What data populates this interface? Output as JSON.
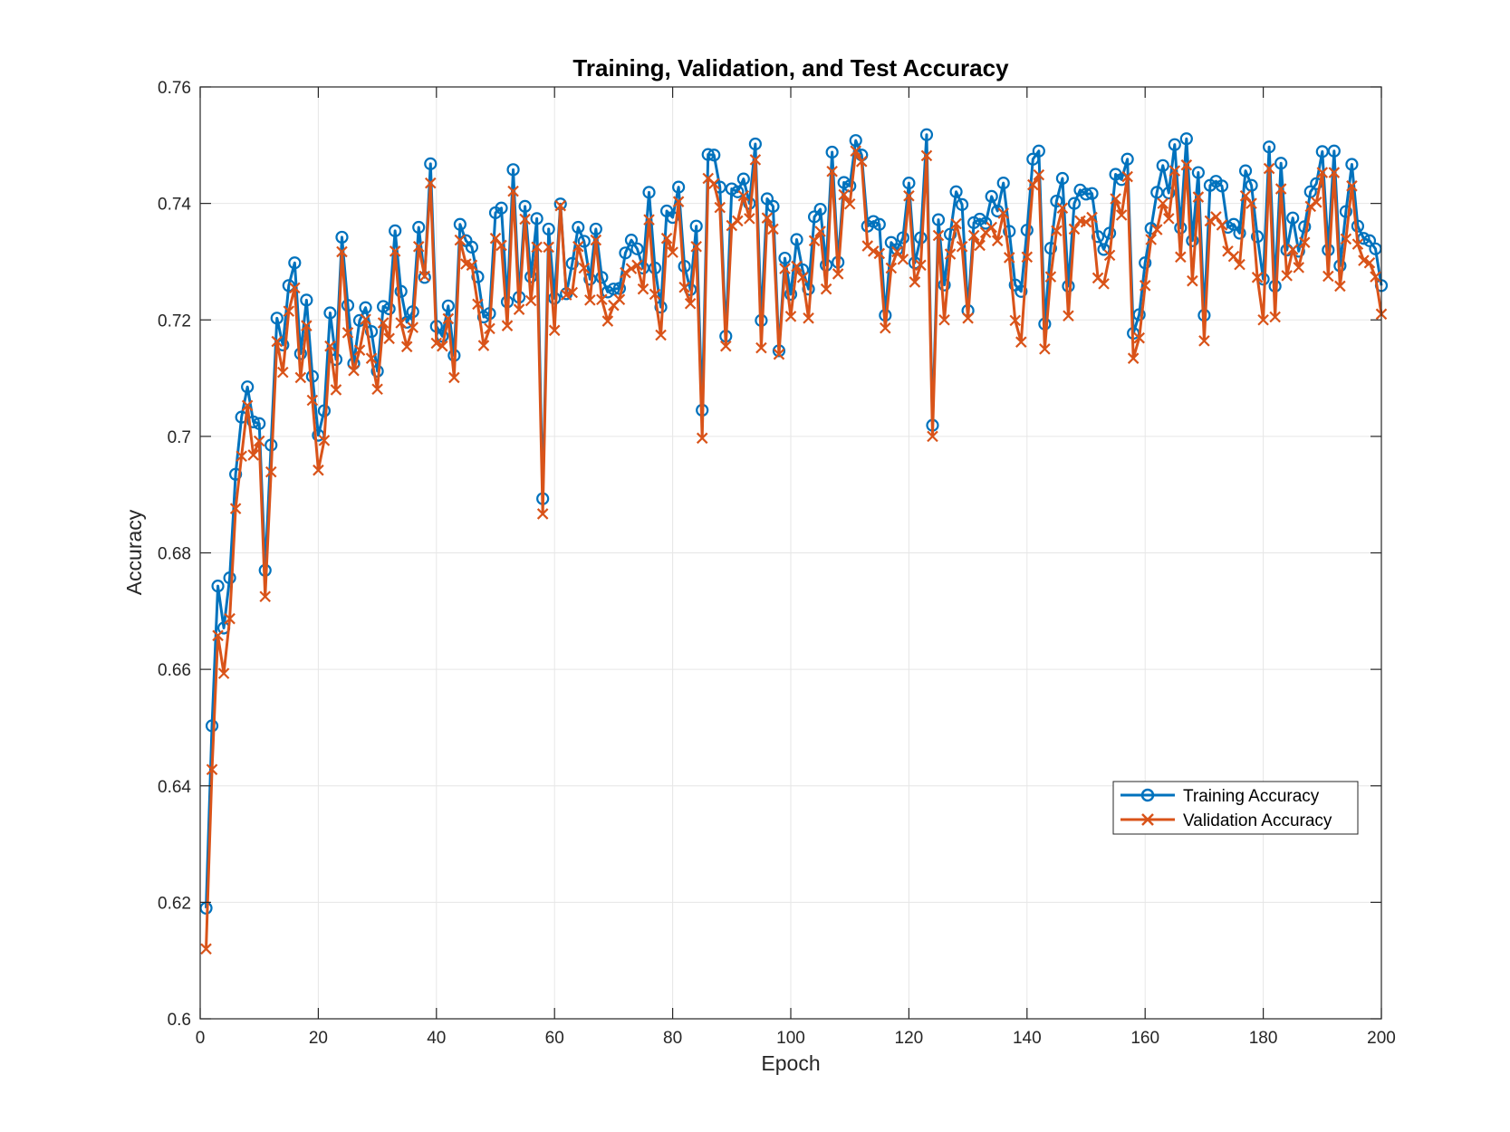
{
  "chart_data": {
    "type": "line",
    "title": "Training, Validation, and Test Accuracy",
    "xlabel": "Epoch",
    "ylabel": "Accuracy",
    "xlim": [
      0,
      200
    ],
    "ylim": [
      0.6,
      0.76
    ],
    "xticks": [
      0,
      20,
      40,
      60,
      80,
      100,
      120,
      140,
      160,
      180,
      200
    ],
    "xtick_labels": [
      "0",
      "20",
      "40",
      "60",
      "80",
      "100",
      "120",
      "140",
      "160",
      "180",
      "200"
    ],
    "yticks": [
      0.6,
      0.62,
      0.64,
      0.66,
      0.68,
      0.7,
      0.72,
      0.74,
      0.76
    ],
    "ytick_labels": [
      "0.6",
      "0.62",
      "0.64",
      "0.66",
      "0.68",
      "0.7",
      "0.72",
      "0.74",
      "0.76"
    ],
    "grid": true,
    "legend_position": "lower-right",
    "x": [
      1,
      2,
      3,
      4,
      5,
      6,
      7,
      8,
      9,
      10,
      11,
      12,
      13,
      14,
      15,
      16,
      17,
      18,
      19,
      20,
      21,
      22,
      23,
      24,
      25,
      26,
      27,
      28,
      29,
      30,
      31,
      32,
      33,
      34,
      35,
      36,
      37,
      38,
      39,
      40,
      41,
      42,
      43,
      44,
      45,
      46,
      47,
      48,
      49,
      50,
      51,
      52,
      53,
      54,
      55,
      56,
      57,
      58,
      59,
      60,
      61,
      62,
      63,
      64,
      65,
      66,
      67,
      68,
      69,
      70,
      71,
      72,
      73,
      74,
      75,
      76,
      77,
      78,
      79,
      80,
      81,
      82,
      83,
      84,
      85,
      86,
      87,
      88,
      89,
      90,
      91,
      92,
      93,
      94,
      95,
      96,
      97,
      98,
      99,
      100,
      101,
      102,
      103,
      104,
      105,
      106,
      107,
      108,
      109,
      110,
      111,
      112,
      113,
      114,
      115,
      116,
      117,
      118,
      119,
      120,
      121,
      122,
      123,
      124,
      125,
      126,
      127,
      128,
      129,
      130,
      131,
      132,
      133,
      134,
      135,
      136,
      137,
      138,
      139,
      140,
      141,
      142,
      143,
      144,
      145,
      146,
      147,
      148,
      149,
      150,
      151,
      152,
      153,
      154,
      155,
      156,
      157,
      158,
      159,
      160,
      161,
      162,
      163,
      164,
      165,
      166,
      167,
      168,
      169,
      170,
      171,
      172,
      173,
      174,
      175,
      176,
      177,
      178,
      179,
      180,
      181,
      182,
      183,
      184,
      185,
      186,
      187,
      188,
      189,
      190,
      191,
      192,
      193,
      194,
      195,
      196,
      197,
      198,
      199,
      200
    ],
    "series": [
      {
        "name": "Training Accuracy",
        "color": "#0072BD",
        "marker": "circle",
        "values": [
          0.619,
          0.6503,
          0.6743,
          0.6671,
          0.6757,
          0.6935,
          0.7033,
          0.7085,
          0.7025,
          0.7022,
          0.677,
          0.6985,
          0.7203,
          0.7157,
          0.7259,
          0.7298,
          0.7142,
          0.7234,
          0.7103,
          0.7002,
          0.7044,
          0.7212,
          0.7132,
          0.7342,
          0.7225,
          0.7125,
          0.7199,
          0.7221,
          0.718,
          0.7112,
          0.7223,
          0.7219,
          0.7353,
          0.7249,
          0.7196,
          0.7214,
          0.7359,
          0.7273,
          0.7468,
          0.7189,
          0.7172,
          0.7224,
          0.7139,
          0.7364,
          0.7336,
          0.7325,
          0.7274,
          0.7205,
          0.7211,
          0.7384,
          0.7392,
          0.7231,
          0.7458,
          0.7239,
          0.7395,
          0.7274,
          0.7374,
          0.6893,
          0.7356,
          0.7237,
          0.7399,
          0.7245,
          0.7297,
          0.7359,
          0.7335,
          0.727,
          0.7356,
          0.7273,
          0.7248,
          0.7253,
          0.7254,
          0.7315,
          0.7337,
          0.7322,
          0.7289,
          0.7419,
          0.7289,
          0.7222,
          0.7387,
          0.7376,
          0.7428,
          0.7292,
          0.7252,
          0.7361,
          0.7045,
          0.7484,
          0.7483,
          0.7428,
          0.7172,
          0.7425,
          0.742,
          0.7442,
          0.74,
          0.7502,
          0.7199,
          0.7408,
          0.7395,
          0.7147,
          0.7306,
          0.7244,
          0.7338,
          0.7286,
          0.7253,
          0.7377,
          0.739,
          0.7294,
          0.7488,
          0.7299,
          0.7436,
          0.743,
          0.7508,
          0.7483,
          0.7361,
          0.7369,
          0.7364,
          0.7208,
          0.7333,
          0.7321,
          0.7341,
          0.7435,
          0.7298,
          0.7341,
          0.7518,
          0.7019,
          0.7372,
          0.726,
          0.7347,
          0.742,
          0.7398,
          0.7216,
          0.7367,
          0.7373,
          0.7366,
          0.7412,
          0.7387,
          0.7435,
          0.7352,
          0.726,
          0.7249,
          0.7354,
          0.7476,
          0.749,
          0.7193,
          0.7323,
          0.7404,
          0.7443,
          0.7258,
          0.74,
          0.7423,
          0.7416,
          0.7417,
          0.7343,
          0.7321,
          0.7349,
          0.745,
          0.7441,
          0.7476,
          0.7177,
          0.7209,
          0.7298,
          0.7357,
          0.7419,
          0.7465,
          0.7418,
          0.7501,
          0.7358,
          0.7511,
          0.7336,
          0.7453,
          0.7208,
          0.7431,
          0.7438,
          0.743,
          0.7359,
          0.7364,
          0.7349,
          0.7456,
          0.7431,
          0.7343,
          0.727,
          0.7497,
          0.7258,
          0.7469,
          0.732,
          0.7375,
          0.7318,
          0.736,
          0.742,
          0.7434,
          0.7489,
          0.732,
          0.749,
          0.7293,
          0.7386,
          0.7467,
          0.7361,
          0.734,
          0.7336,
          0.7322,
          0.7259
        ]
      },
      {
        "name": "Validation Accuracy",
        "color": "#D95319",
        "marker": "cross",
        "values": [
          0.612,
          0.6428,
          0.6658,
          0.6593,
          0.6687,
          0.6876,
          0.6966,
          0.7053,
          0.6968,
          0.6992,
          0.6725,
          0.6939,
          0.7163,
          0.711,
          0.7215,
          0.7255,
          0.7101,
          0.719,
          0.7062,
          0.6942,
          0.6993,
          0.7155,
          0.708,
          0.7317,
          0.7178,
          0.7113,
          0.7148,
          0.7201,
          0.7134,
          0.7081,
          0.7195,
          0.7168,
          0.7318,
          0.7195,
          0.7154,
          0.7187,
          0.7326,
          0.7275,
          0.7435,
          0.716,
          0.7155,
          0.7202,
          0.7101,
          0.7337,
          0.7296,
          0.7294,
          0.7227,
          0.7156,
          0.7185,
          0.734,
          0.7328,
          0.719,
          0.7421,
          0.7218,
          0.7373,
          0.7233,
          0.7325,
          0.6867,
          0.7325,
          0.7182,
          0.7396,
          0.7243,
          0.7247,
          0.7326,
          0.7289,
          0.7234,
          0.7337,
          0.7235,
          0.7198,
          0.7225,
          0.7235,
          0.7281,
          0.7288,
          0.7294,
          0.7253,
          0.7372,
          0.7244,
          0.7174,
          0.734,
          0.7316,
          0.7403,
          0.7256,
          0.7228,
          0.7326,
          0.6997,
          0.7443,
          0.7434,
          0.7393,
          0.7155,
          0.7362,
          0.737,
          0.7413,
          0.7374,
          0.7475,
          0.7152,
          0.7375,
          0.7356,
          0.7141,
          0.7288,
          0.7206,
          0.7292,
          0.7273,
          0.7203,
          0.7336,
          0.7352,
          0.7253,
          0.7455,
          0.7279,
          0.7415,
          0.7399,
          0.749,
          0.7472,
          0.7327,
          0.7318,
          0.7314,
          0.7186,
          0.7289,
          0.7317,
          0.7304,
          0.7413,
          0.7265,
          0.7294,
          0.7482,
          0.7,
          0.7345,
          0.72,
          0.7313,
          0.7365,
          0.7326,
          0.7203,
          0.7345,
          0.7328,
          0.735,
          0.7359,
          0.7336,
          0.7383,
          0.7307,
          0.7199,
          0.7162,
          0.7308,
          0.7432,
          0.7449,
          0.715,
          0.7274,
          0.7353,
          0.7392,
          0.7207,
          0.7356,
          0.737,
          0.7368,
          0.7376,
          0.7272,
          0.7262,
          0.7311,
          0.7408,
          0.738,
          0.7446,
          0.7134,
          0.7169,
          0.7259,
          0.7338,
          0.7355,
          0.74,
          0.7374,
          0.7456,
          0.7308,
          0.7466,
          0.7267,
          0.7411,
          0.7164,
          0.737,
          0.7377,
          0.7363,
          0.7318,
          0.7309,
          0.7295,
          0.7413,
          0.74,
          0.7273,
          0.72,
          0.746,
          0.7205,
          0.7425,
          0.7276,
          0.7321,
          0.729,
          0.7333,
          0.7395,
          0.7402,
          0.7453,
          0.7275,
          0.7453,
          0.7258,
          0.7339,
          0.743,
          0.733,
          0.7302,
          0.7298,
          0.7274,
          0.721
        ]
      }
    ]
  }
}
